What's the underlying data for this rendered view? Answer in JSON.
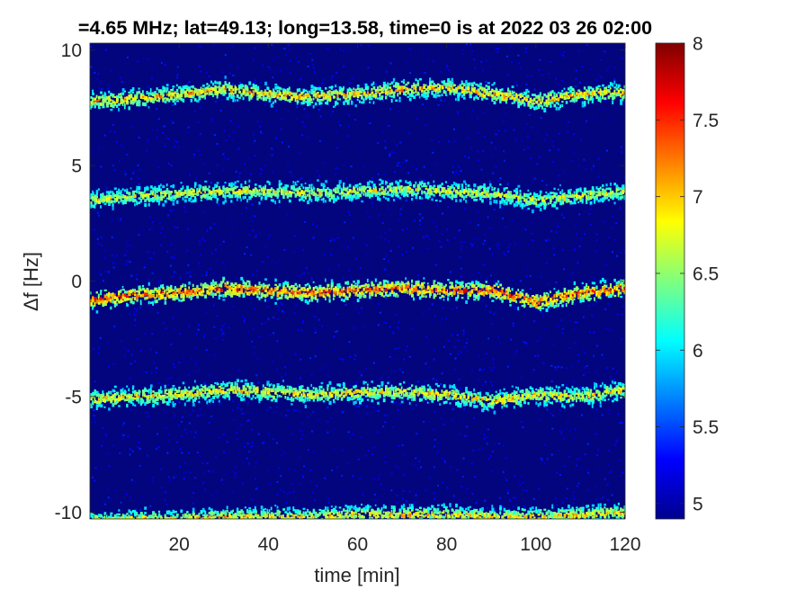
{
  "chart_data": {
    "type": "heatmap",
    "title": "=4.65 MHz;  lat=49.13; long=13.58, time=0 is at 2022 03 26 02:00",
    "xlabel": "time [min]",
    "ylabel": "Δf [Hz]",
    "xlim": [
      0,
      120
    ],
    "ylim": [
      -10.3,
      10.3
    ],
    "x_ticks": [
      20,
      40,
      60,
      80,
      100,
      120
    ],
    "x_tick_labels": [
      "20",
      "40",
      "60",
      "80",
      "100",
      "120"
    ],
    "y_ticks": [
      10,
      5,
      0,
      -5,
      -10
    ],
    "y_tick_labels": [
      "10",
      "5",
      "0",
      "-5",
      "-10"
    ],
    "colorbar": {
      "colormap": "jet",
      "range": [
        4.9,
        8
      ],
      "ticks": [
        8,
        7.5,
        7,
        6.5,
        6,
        5.5,
        5
      ],
      "tick_labels": [
        "8",
        "7.5",
        "7",
        "6.5",
        "6",
        "5.5",
        "5"
      ]
    },
    "background_level": 5.0,
    "bands": [
      {
        "name": "band-plus-8",
        "x": [
          0,
          10,
          20,
          30,
          40,
          50,
          60,
          70,
          80,
          90,
          100,
          110,
          120
        ],
        "y": [
          7.8,
          7.9,
          8.1,
          8.3,
          8.1,
          8.0,
          8.1,
          8.3,
          8.4,
          8.1,
          7.8,
          8.1,
          8.2
        ],
        "peak_level": 7.3
      },
      {
        "name": "band-plus-4",
        "x": [
          0,
          10,
          20,
          30,
          40,
          50,
          60,
          70,
          80,
          90,
          100,
          110,
          120
        ],
        "y": [
          3.5,
          3.7,
          3.8,
          3.9,
          3.9,
          3.8,
          3.9,
          4.0,
          3.9,
          3.8,
          3.5,
          3.7,
          3.9
        ],
        "peak_level": 7.0
      },
      {
        "name": "band-zero",
        "x": [
          0,
          10,
          20,
          30,
          40,
          50,
          60,
          70,
          80,
          90,
          100,
          110,
          120
        ],
        "y": [
          -0.8,
          -0.6,
          -0.5,
          -0.3,
          -0.4,
          -0.5,
          -0.4,
          -0.3,
          -0.4,
          -0.4,
          -0.9,
          -0.5,
          -0.3
        ],
        "peak_level": 7.8
      },
      {
        "name": "band-minus-5",
        "x": [
          0,
          10,
          20,
          30,
          40,
          50,
          60,
          70,
          80,
          90,
          100,
          110,
          120
        ],
        "y": [
          -5.1,
          -5.0,
          -4.9,
          -4.7,
          -4.8,
          -4.9,
          -4.8,
          -4.8,
          -4.9,
          -5.2,
          -4.9,
          -5.0,
          -4.7
        ],
        "peak_level": 7.2
      },
      {
        "name": "band-minus-10",
        "x": [
          0,
          10,
          20,
          30,
          40,
          50,
          60,
          70,
          80,
          90,
          100,
          110,
          120
        ],
        "y": [
          -10.4,
          -10.3,
          -10.3,
          -10.2,
          -10.2,
          -10.2,
          -10.1,
          -10.1,
          -10.1,
          -10.2,
          -10.2,
          -10.1,
          -10.0
        ],
        "peak_level": 7.2
      }
    ]
  }
}
